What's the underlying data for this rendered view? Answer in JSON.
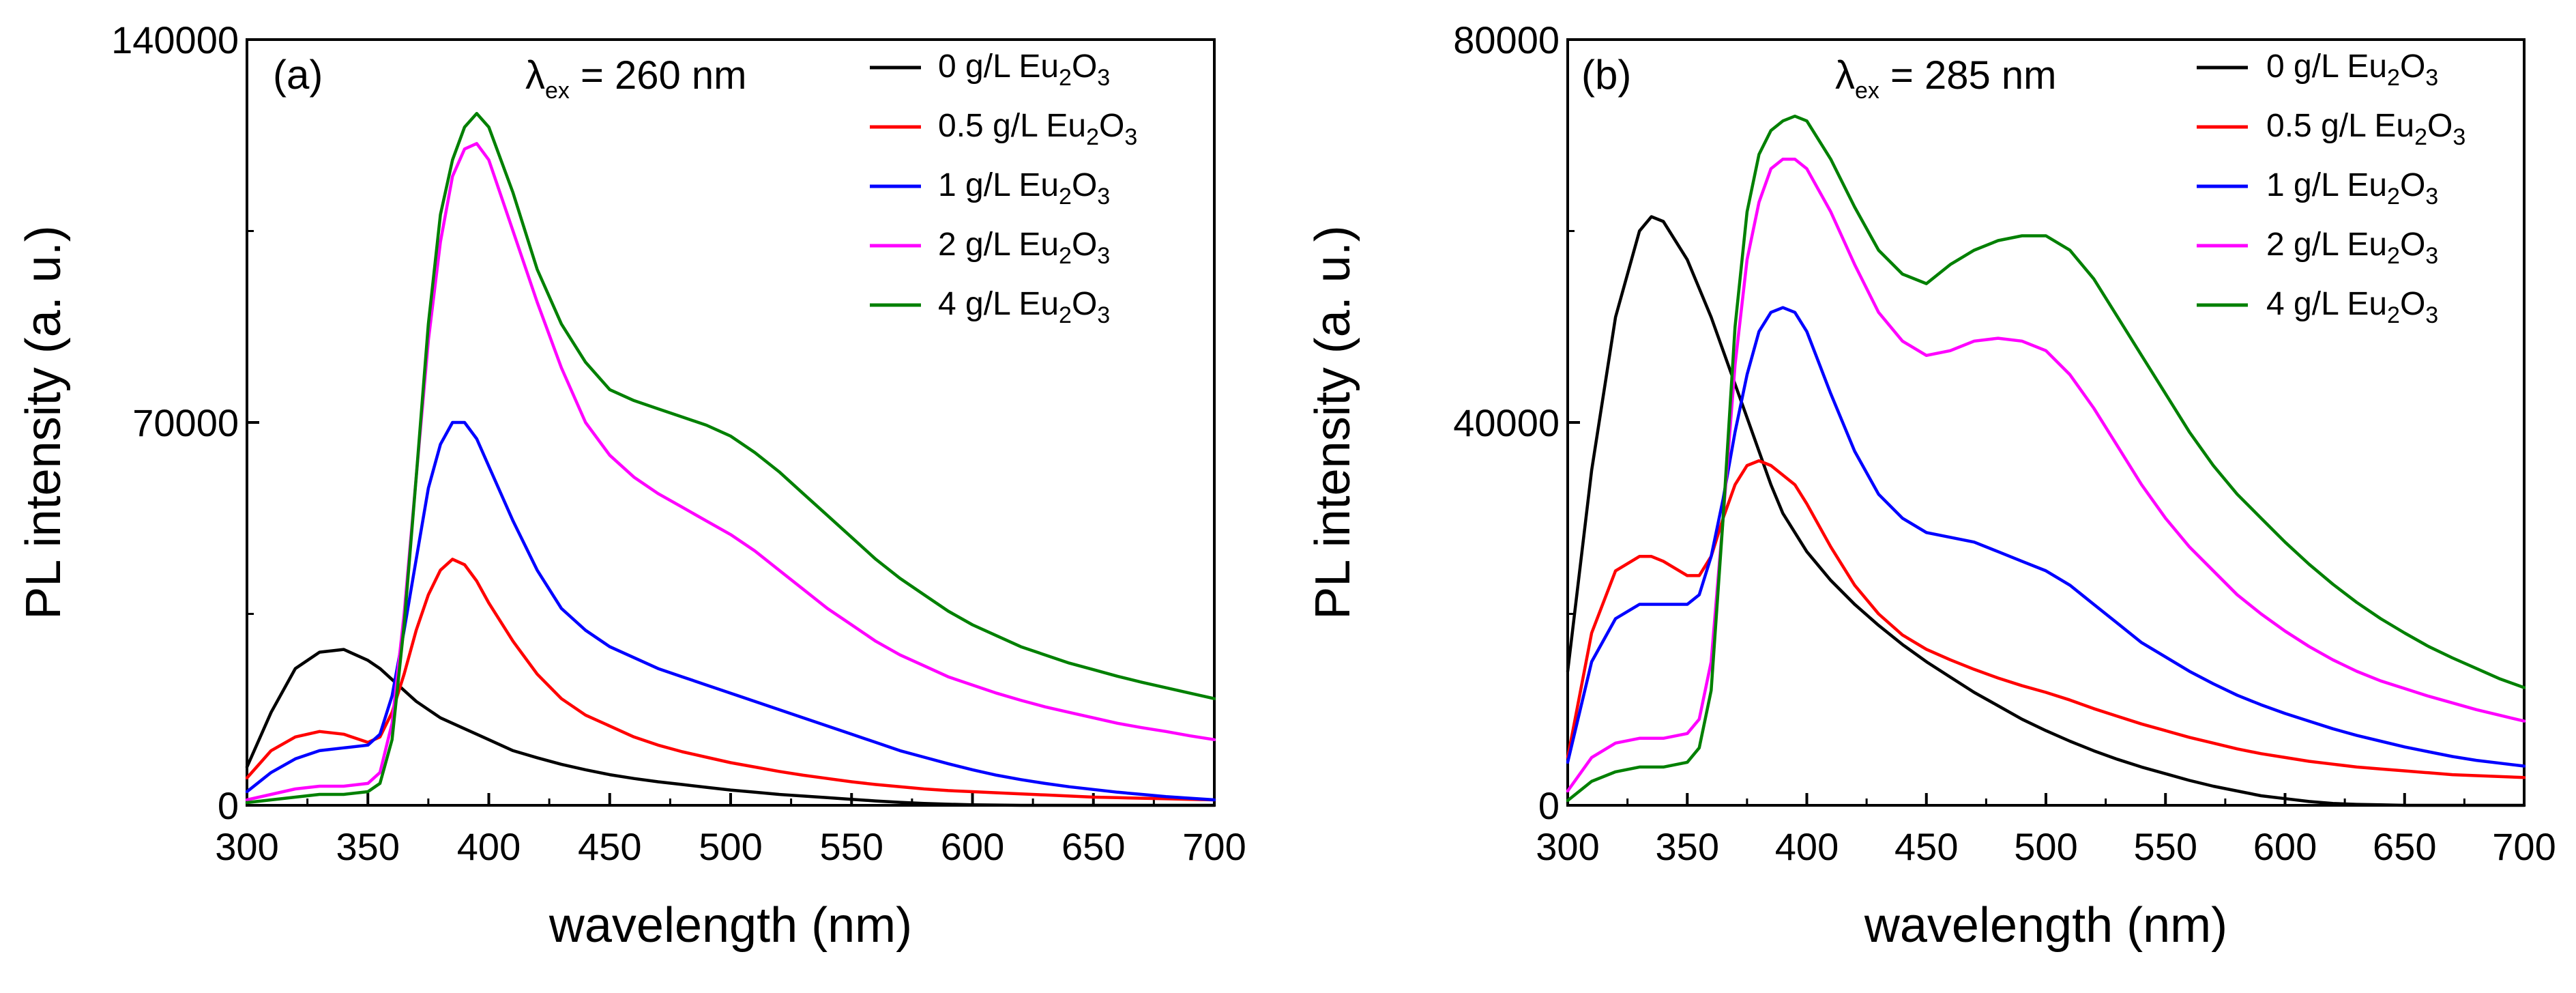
{
  "chart_data": [
    {
      "type": "line",
      "panel_label": "(a)",
      "annotation": {
        "symbol": "λ",
        "sub": "ex",
        "text": " = 260 nm"
      },
      "xlabel": "wavelength (nm)",
      "ylabel": "PL intensity (a. u.)",
      "xlim": [
        300,
        700
      ],
      "ylim": [
        0,
        140000
      ],
      "xticks": [
        300,
        350,
        400,
        450,
        500,
        550,
        600,
        650,
        700
      ],
      "yticks": [
        0,
        70000,
        140000
      ],
      "x": [
        300,
        310,
        320,
        330,
        340,
        350,
        355,
        360,
        365,
        370,
        375,
        380,
        385,
        390,
        395,
        400,
        410,
        420,
        430,
        440,
        450,
        460,
        470,
        480,
        490,
        500,
        510,
        520,
        530,
        540,
        550,
        560,
        570,
        580,
        590,
        600,
        610,
        620,
        630,
        640,
        650,
        660,
        670,
        680,
        690,
        700
      ],
      "series": [
        {
          "name": "0 g/L Eu2O3",
          "label": {
            "prefix": "0 g/L Eu",
            "s1": "2",
            "mid": "O",
            "s2": "3"
          },
          "color": "#000000",
          "values": [
            7000,
            17000,
            25000,
            28000,
            28500,
            26500,
            25000,
            23000,
            21000,
            19000,
            17500,
            16000,
            15000,
            14000,
            13000,
            12000,
            10000,
            8700,
            7500,
            6500,
            5600,
            4900,
            4300,
            3800,
            3300,
            2800,
            2400,
            2000,
            1700,
            1400,
            1100,
            800,
            550,
            350,
            200,
            100,
            50,
            0,
            0,
            0,
            0,
            0,
            0,
            0,
            0,
            0
          ]
        },
        {
          "name": "0.5 g/L Eu2O3",
          "label": {
            "prefix": "0.5 g/L Eu",
            "s1": "2",
            "mid": "O",
            "s2": "3"
          },
          "color": "#ff0000",
          "values": [
            5000,
            10000,
            12500,
            13500,
            13000,
            11500,
            12500,
            17000,
            24000,
            32000,
            38500,
            43000,
            45000,
            44000,
            41000,
            37000,
            30000,
            24000,
            19500,
            16500,
            14500,
            12500,
            11000,
            9800,
            8800,
            7800,
            7000,
            6200,
            5500,
            4900,
            4300,
            3800,
            3400,
            3000,
            2700,
            2500,
            2300,
            2100,
            1900,
            1700,
            1500,
            1400,
            1300,
            1200,
            1100,
            1000
          ]
        },
        {
          "name": "1 g/L Eu2O3",
          "label": {
            "prefix": "1 g/L Eu",
            "s1": "2",
            "mid": "O",
            "s2": "3"
          },
          "color": "#0000ff",
          "values": [
            2500,
            6000,
            8500,
            10000,
            10500,
            11000,
            13000,
            20000,
            32000,
            45000,
            58000,
            66000,
            70000,
            70000,
            67000,
            62000,
            52000,
            43000,
            36000,
            32000,
            29000,
            27000,
            25000,
            23500,
            22000,
            20500,
            19000,
            17500,
            16000,
            14500,
            13000,
            11500,
            10000,
            8800,
            7600,
            6500,
            5500,
            4700,
            4000,
            3400,
            2900,
            2400,
            2000,
            1600,
            1300,
            1000
          ]
        },
        {
          "name": "2 g/L Eu2O3",
          "label": {
            "prefix": "2 g/L Eu",
            "s1": "2",
            "mid": "O",
            "s2": "3"
          },
          "color": "#ff00ff",
          "values": [
            1000,
            2000,
            3000,
            3500,
            3500,
            4000,
            6000,
            15000,
            35000,
            60000,
            85000,
            103000,
            115000,
            120000,
            121000,
            118000,
            105000,
            92000,
            80000,
            70000,
            64000,
            60000,
            57000,
            54500,
            52000,
            49500,
            46500,
            43000,
            39500,
            36000,
            33000,
            30000,
            27500,
            25500,
            23500,
            22000,
            20500,
            19200,
            18000,
            17000,
            16000,
            15000,
            14200,
            13500,
            12700,
            12000
          ]
        },
        {
          "name": "4 g/L Eu2O3",
          "label": {
            "prefix": "4 g/L Eu",
            "s1": "2",
            "mid": "O",
            "s2": "3"
          },
          "color": "#008000",
          "values": [
            500,
            1000,
            1500,
            2000,
            2000,
            2500,
            4000,
            12000,
            33000,
            60000,
            88000,
            108000,
            118000,
            124000,
            126500,
            124000,
            112000,
            98000,
            88000,
            81000,
            76000,
            74000,
            72500,
            71000,
            69500,
            67500,
            64500,
            61000,
            57000,
            53000,
            49000,
            45000,
            41500,
            38500,
            35500,
            33000,
            31000,
            29000,
            27500,
            26000,
            24800,
            23600,
            22500,
            21500,
            20500,
            19500
          ]
        }
      ]
    },
    {
      "type": "line",
      "panel_label": "(b)",
      "annotation": {
        "symbol": "λ",
        "sub": "ex",
        "text": " = 285 nm"
      },
      "xlabel": "wavelength (nm)",
      "ylabel": "PL intensity (a. u.)",
      "xlim": [
        300,
        700
      ],
      "ylim": [
        0,
        80000
      ],
      "xticks": [
        300,
        350,
        400,
        450,
        500,
        550,
        600,
        650,
        700
      ],
      "yticks": [
        0,
        40000,
        80000
      ],
      "x": [
        300,
        310,
        320,
        330,
        335,
        340,
        350,
        355,
        360,
        365,
        370,
        375,
        380,
        385,
        390,
        395,
        400,
        410,
        420,
        430,
        440,
        450,
        460,
        470,
        480,
        490,
        500,
        510,
        520,
        530,
        540,
        550,
        560,
        570,
        580,
        590,
        600,
        610,
        620,
        630,
        640,
        650,
        660,
        670,
        680,
        690,
        700
      ],
      "series": [
        {
          "name": "0 g/L Eu2O3",
          "label": {
            "prefix": "0 g/L Eu",
            "s1": "2",
            "mid": "O",
            "s2": "3"
          },
          "color": "#000000",
          "values": [
            14000,
            35000,
            51000,
            60000,
            61500,
            61000,
            57000,
            54000,
            51000,
            47500,
            44000,
            40500,
            37000,
            33500,
            30500,
            28500,
            26500,
            23500,
            21000,
            18800,
            16800,
            15000,
            13400,
            11800,
            10400,
            9000,
            7800,
            6700,
            5700,
            4800,
            4000,
            3300,
            2600,
            2000,
            1500,
            1000,
            700,
            400,
            200,
            100,
            50,
            0,
            0,
            0,
            0,
            0,
            0
          ]
        },
        {
          "name": "0.5 g/L Eu2O3",
          "label": {
            "prefix": "0.5 g/L Eu",
            "s1": "2",
            "mid": "O",
            "s2": "3"
          },
          "color": "#ff0000",
          "values": [
            5000,
            18000,
            24500,
            26000,
            26000,
            25500,
            24000,
            24000,
            26000,
            30000,
            33500,
            35500,
            36000,
            35500,
            34500,
            33500,
            31500,
            27000,
            23000,
            20000,
            17800,
            16300,
            15200,
            14200,
            13300,
            12500,
            11800,
            11000,
            10100,
            9300,
            8500,
            7800,
            7100,
            6500,
            5900,
            5400,
            5000,
            4600,
            4300,
            4000,
            3800,
            3600,
            3400,
            3200,
            3100,
            3000,
            2900
          ]
        },
        {
          "name": "1 g/L Eu2O3",
          "label": {
            "prefix": "1 g/L Eu",
            "s1": "2",
            "mid": "O",
            "s2": "3"
          },
          "color": "#0000ff",
          "values": [
            4500,
            15000,
            19500,
            21000,
            21000,
            21000,
            21000,
            22000,
            26000,
            32000,
            39000,
            45000,
            49500,
            51500,
            52000,
            51500,
            49500,
            43000,
            37000,
            32500,
            30000,
            28500,
            28000,
            27500,
            26500,
            25500,
            24500,
            23000,
            21000,
            19000,
            17000,
            15500,
            14000,
            12700,
            11500,
            10500,
            9600,
            8800,
            8000,
            7300,
            6700,
            6100,
            5600,
            5100,
            4700,
            4400,
            4100
          ]
        },
        {
          "name": "2 g/L Eu2O3",
          "label": {
            "prefix": "2 g/L Eu",
            "s1": "2",
            "mid": "O",
            "s2": "3"
          },
          "color": "#ff00ff",
          "values": [
            1500,
            5000,
            6500,
            7000,
            7000,
            7000,
            7500,
            9000,
            15000,
            30000,
            46000,
            57000,
            63000,
            66500,
            67500,
            67500,
            66500,
            62000,
            56500,
            51500,
            48500,
            47000,
            47500,
            48500,
            48800,
            48500,
            47500,
            45000,
            41500,
            37500,
            33500,
            30000,
            27000,
            24500,
            22000,
            20000,
            18200,
            16600,
            15200,
            14000,
            13000,
            12200,
            11400,
            10700,
            10000,
            9400,
            8800
          ]
        },
        {
          "name": "4 g/L Eu2O3",
          "label": {
            "prefix": "4 g/L Eu",
            "s1": "2",
            "mid": "O",
            "s2": "3"
          },
          "color": "#008000",
          "values": [
            500,
            2500,
            3500,
            4000,
            4000,
            4000,
            4500,
            6000,
            12000,
            30000,
            50000,
            62000,
            68000,
            70500,
            71500,
            72000,
            71500,
            67500,
            62500,
            58000,
            55500,
            54500,
            56500,
            58000,
            59000,
            59500,
            59500,
            58000,
            55000,
            51000,
            47000,
            43000,
            39000,
            35500,
            32500,
            30000,
            27500,
            25200,
            23100,
            21200,
            19500,
            18000,
            16600,
            15400,
            14300,
            13200,
            12300
          ]
        }
      ]
    }
  ]
}
